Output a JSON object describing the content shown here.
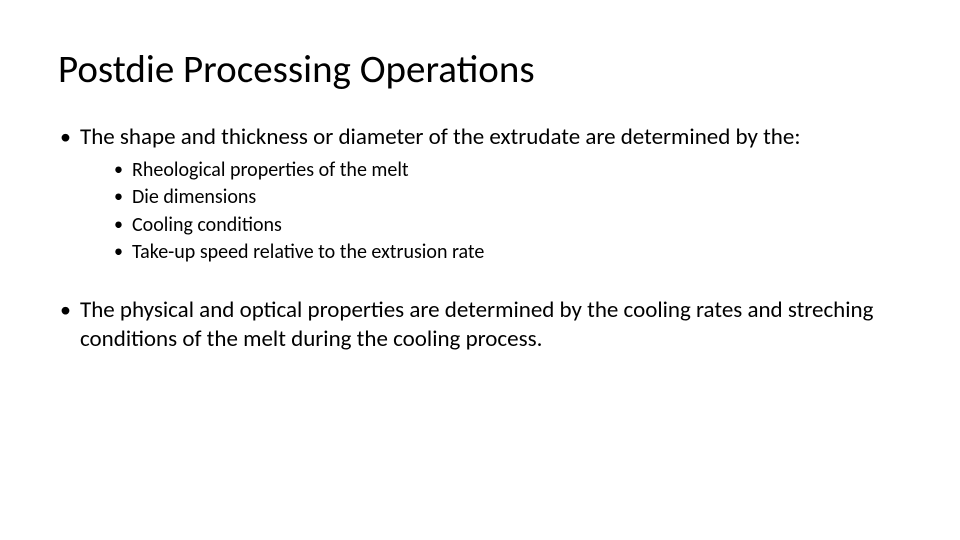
{
  "title": "Postdie Processing Operations",
  "level1": {
    "item0": "The shape and thickness or diameter of the extrudate are determined by the:",
    "item1": "The physical and optical properties are determined by the cooling rates and streching conditions of the melt during the cooling process."
  },
  "level2": {
    "b0": "Rheological properties of the melt",
    "b1": "Die dimensions",
    "b2": "Cooling conditions",
    "b3": "Take-up speed relative to the extrusion rate"
  },
  "style": {
    "background_color": "#ffffff",
    "text_color": "#000000",
    "font_family": "Calibri",
    "title_fontsize_pt": 30,
    "level1_fontsize_pt": 17,
    "level2_fontsize_pt": 15,
    "bullet_glyph": "•"
  }
}
